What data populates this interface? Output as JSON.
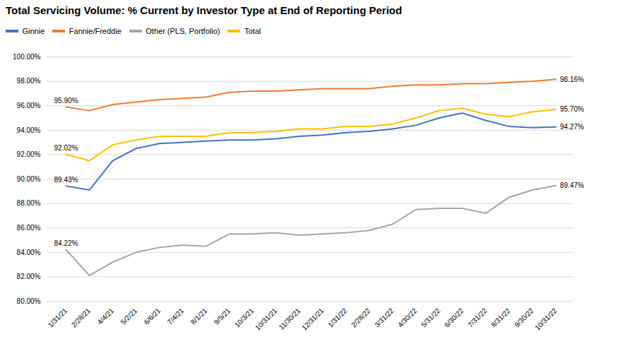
{
  "chart_data": {
    "type": "line",
    "title": "Total Servicing Volume: % Current by Investor Type at End of Reporting Period",
    "categories": [
      "1/31/21",
      "2/28/21",
      "4/4/21",
      "5/2/21",
      "6/6/21",
      "7/4/21",
      "8/1/21",
      "9/5/21",
      "10/3/21",
      "10/31/21",
      "11/30/21",
      "12/31/21",
      "1/31/22",
      "2/28/22",
      "3/31/22",
      "4/30/22",
      "5/31/22",
      "6/30/22",
      "7/31/22",
      "8/31/22",
      "9/30/22",
      "10/31/22"
    ],
    "series": [
      {
        "name": "Ginnie",
        "color": "#4472C4",
        "values": [
          89.43,
          89.1,
          91.5,
          92.5,
          92.9,
          93.0,
          93.1,
          93.2,
          93.2,
          93.3,
          93.5,
          93.6,
          93.8,
          93.9,
          94.1,
          94.4,
          95.0,
          95.4,
          94.8,
          94.3,
          94.2,
          94.27
        ]
      },
      {
        "name": "Fannie/Freddie",
        "color": "#ED7D31",
        "values": [
          95.9,
          95.6,
          96.1,
          96.3,
          96.5,
          96.6,
          96.7,
          97.1,
          97.2,
          97.2,
          97.3,
          97.4,
          97.4,
          97.4,
          97.6,
          97.7,
          97.7,
          97.8,
          97.8,
          97.9,
          98.0,
          98.16
        ]
      },
      {
        "name": "Other (PLS, Portfolio)",
        "color": "#A5A5A5",
        "values": [
          84.22,
          82.1,
          83.2,
          84.0,
          84.4,
          84.6,
          84.5,
          85.5,
          85.5,
          85.6,
          85.4,
          85.5,
          85.6,
          85.8,
          86.3,
          87.5,
          87.6,
          87.6,
          87.2,
          88.5,
          89.1,
          89.47
        ]
      },
      {
        "name": "Total",
        "color": "#FFC000",
        "values": [
          92.02,
          91.5,
          92.8,
          93.2,
          93.5,
          93.5,
          93.5,
          93.8,
          93.8,
          93.9,
          94.1,
          94.1,
          94.3,
          94.3,
          94.5,
          95.0,
          95.6,
          95.8,
          95.3,
          95.1,
          95.5,
          95.7
        ]
      }
    ],
    "ylim": [
      80,
      100
    ],
    "yticks": [
      {
        "value": 80,
        "label": "80.00%"
      },
      {
        "value": 82,
        "label": "82.00%"
      },
      {
        "value": 84,
        "label": "84.00%"
      },
      {
        "value": 86,
        "label": "86.00%"
      },
      {
        "value": 88,
        "label": "88.00%"
      },
      {
        "value": 90,
        "label": "90.00%"
      },
      {
        "value": 92,
        "label": "92.00%"
      },
      {
        "value": 94,
        "label": "94.00%"
      },
      {
        "value": 96,
        "label": "96.00%"
      },
      {
        "value": 98,
        "label": "98.00%"
      },
      {
        "value": 100,
        "label": "100.00%"
      }
    ],
    "grid": true,
    "legend": "top",
    "annotations": [
      {
        "text": "95.90%",
        "x": "1/31/21",
        "y": 95.9,
        "position": "start"
      },
      {
        "text": "92.02%",
        "x": "1/31/21",
        "y": 92.02,
        "position": "start"
      },
      {
        "text": "89.43%",
        "x": "1/31/21",
        "y": 89.43,
        "position": "start"
      },
      {
        "text": "84.22%",
        "x": "1/31/21",
        "y": 84.22,
        "position": "start"
      },
      {
        "text": "98.16%",
        "x": "10/31/22",
        "y": 98.16,
        "position": "end"
      },
      {
        "text": "95.70%",
        "x": "10/31/22",
        "y": 95.7,
        "position": "end"
      },
      {
        "text": "94.27%",
        "x": "10/31/22",
        "y": 94.27,
        "position": "end"
      },
      {
        "text": "89.47%",
        "x": "10/31/22",
        "y": 89.47,
        "position": "end"
      }
    ]
  }
}
